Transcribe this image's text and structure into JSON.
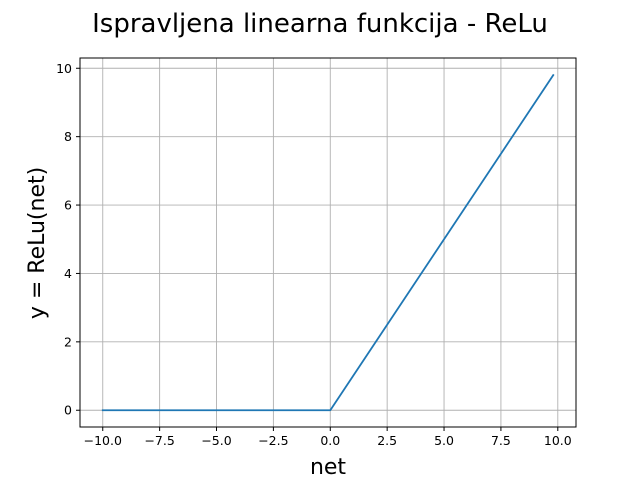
{
  "chart_data": {
    "type": "line",
    "title": "Ispravljena linearna funkcija - ReLu",
    "xlabel": "net",
    "ylabel": "y = ReLu(net)",
    "xlim": [
      -11.0,
      10.8
    ],
    "ylim": [
      -0.49,
      10.3
    ],
    "x_ticks": [
      -10.0,
      -7.5,
      -5.0,
      -2.5,
      0.0,
      2.5,
      5.0,
      7.5,
      10.0
    ],
    "x_tick_labels": [
      "−10.0",
      "−7.5",
      "−5.0",
      "−2.5",
      "0.0",
      "2.5",
      "5.0",
      "7.5",
      "10.0"
    ],
    "y_ticks": [
      0,
      2,
      4,
      6,
      8,
      10
    ],
    "y_tick_labels": [
      "0",
      "2",
      "4",
      "6",
      "8",
      "10"
    ],
    "grid": true,
    "series": [
      {
        "color": "#1f77b4",
        "x": [
          -10.0,
          0.0,
          9.8
        ],
        "y": [
          0.0,
          0.0,
          9.8
        ]
      }
    ]
  }
}
